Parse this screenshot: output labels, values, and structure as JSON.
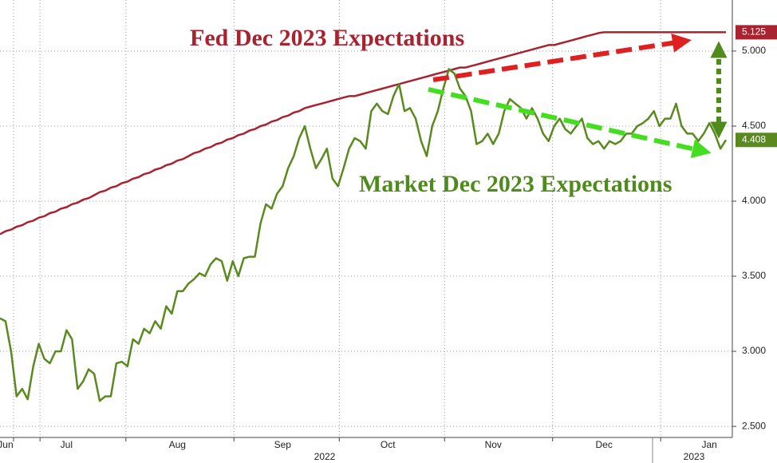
{
  "chart_data": {
    "type": "line",
    "annotations": [
      "Fed Dec 2023 Expectations",
      "Market Dec 2023 Expectations"
    ],
    "categories": [
      null,
      "Jun",
      null,
      null,
      null,
      null,
      null,
      null,
      null,
      null,
      null,
      null,
      "Jul",
      null,
      null,
      null,
      null,
      null,
      null,
      null,
      null,
      null,
      null,
      null,
      null,
      null,
      null,
      null,
      null,
      null,
      null,
      null,
      "Aug",
      null,
      null,
      null,
      null,
      null,
      null,
      null,
      null,
      null,
      null,
      null,
      null,
      null,
      null,
      null,
      null,
      null,
      null,
      "Sep",
      null,
      null,
      null,
      null,
      null,
      null,
      null,
      null,
      null,
      null,
      null,
      null,
      null,
      null,
      null,
      null,
      null,
      null,
      "Oct",
      null,
      null,
      null,
      null,
      null,
      null,
      null,
      null,
      null,
      null,
      null,
      null,
      null,
      null,
      null,
      null,
      null,
      null,
      "Nov",
      null,
      null,
      null,
      null,
      null,
      null,
      null,
      null,
      null,
      null,
      null,
      null,
      null,
      null,
      null,
      null,
      null,
      null,
      null,
      "Dec",
      null,
      null,
      null,
      null,
      null,
      null,
      null,
      null,
      null,
      null,
      null,
      null,
      null,
      null,
      null,
      null,
      null,
      null,
      "Jan",
      null,
      null,
      null
    ],
    "year_labels": [
      "2022",
      "2023"
    ],
    "series": [
      {
        "name": "Fed",
        "color": "#a8232f",
        "end_label": "5.125",
        "values": [
          3.78,
          3.8,
          3.81,
          3.83,
          3.84,
          3.86,
          3.87,
          3.89,
          3.9,
          3.92,
          3.93,
          3.95,
          3.96,
          3.98,
          3.99,
          4.01,
          4.02,
          4.04,
          4.06,
          4.07,
          4.09,
          4.1,
          4.12,
          4.13,
          4.15,
          4.16,
          4.18,
          4.19,
          4.21,
          4.22,
          4.24,
          4.25,
          4.27,
          4.28,
          4.3,
          4.32,
          4.33,
          4.35,
          4.36,
          4.38,
          4.39,
          4.41,
          4.42,
          4.44,
          4.45,
          4.47,
          4.48,
          4.5,
          4.51,
          4.53,
          4.54,
          4.56,
          4.57,
          4.59,
          4.6,
          4.62,
          4.63,
          4.64,
          4.65,
          4.66,
          4.67,
          4.68,
          4.69,
          4.7,
          4.7,
          4.71,
          4.72,
          4.73,
          4.74,
          4.75,
          4.76,
          4.77,
          4.78,
          4.79,
          4.8,
          4.81,
          4.82,
          4.83,
          4.84,
          4.85,
          4.86,
          4.87,
          4.88,
          4.89,
          4.89,
          4.9,
          4.91,
          4.92,
          4.93,
          4.94,
          4.95,
          4.96,
          4.97,
          4.98,
          4.99,
          5.0,
          5.01,
          5.02,
          5.03,
          5.04,
          5.04,
          5.05,
          5.06,
          5.07,
          5.08,
          5.09,
          5.1,
          5.11,
          5.12,
          5.125,
          5.125,
          5.125,
          5.125,
          5.125,
          5.125,
          5.125,
          5.125,
          5.125,
          5.125,
          5.125,
          5.125,
          5.125,
          5.125,
          5.125,
          5.125,
          5.125,
          5.125,
          5.125,
          5.125,
          5.125,
          5.125,
          5.125
        ]
      },
      {
        "name": "Market",
        "color": "#5a8a1f",
        "end_label": "4.408",
        "values": [
          3.22,
          3.2,
          3.0,
          2.7,
          2.75,
          2.68,
          2.9,
          3.05,
          2.95,
          2.92,
          3.0,
          3.0,
          3.14,
          3.08,
          2.75,
          2.8,
          2.88,
          2.85,
          2.67,
          2.7,
          2.7,
          2.92,
          2.93,
          2.9,
          3.08,
          3.05,
          3.15,
          3.12,
          3.2,
          3.15,
          3.3,
          3.25,
          3.4,
          3.4,
          3.45,
          3.48,
          3.52,
          3.5,
          3.58,
          3.62,
          3.6,
          3.47,
          3.6,
          3.5,
          3.62,
          3.63,
          3.63,
          3.85,
          3.98,
          3.95,
          4.05,
          4.1,
          4.22,
          4.3,
          4.42,
          4.5,
          4.35,
          4.22,
          4.28,
          4.35,
          4.15,
          4.1,
          4.22,
          4.35,
          4.42,
          4.4,
          4.35,
          4.6,
          4.65,
          4.6,
          4.58,
          4.7,
          4.78,
          4.6,
          4.62,
          4.55,
          4.4,
          4.3,
          4.5,
          4.6,
          4.75,
          4.88,
          4.85,
          4.75,
          4.7,
          4.6,
          4.38,
          4.4,
          4.45,
          4.38,
          4.45,
          4.6,
          4.68,
          4.65,
          4.62,
          4.55,
          4.62,
          4.55,
          4.45,
          4.4,
          4.5,
          4.55,
          4.48,
          4.45,
          4.5,
          4.55,
          4.42,
          4.38,
          4.4,
          4.35,
          4.4,
          4.38,
          4.4,
          4.45,
          4.45,
          4.5,
          4.52,
          4.55,
          4.6,
          4.5,
          4.55,
          4.55,
          4.65,
          4.5,
          4.45,
          4.45,
          4.4,
          4.45,
          4.52,
          4.45,
          4.35,
          4.408
        ]
      }
    ],
    "ylim": [
      2.426,
      5.34
    ],
    "yticks": [
      {
        "value": 2.5,
        "label": "2.500"
      },
      {
        "value": 3.0,
        "label": "3.000"
      },
      {
        "value": 3.5,
        "label": "3.500"
      },
      {
        "value": 4.0,
        "label": "4.000"
      },
      {
        "value": 4.5,
        "label": "4.500"
      },
      {
        "value": 5.0,
        "label": "5.000"
      }
    ],
    "grid": true
  }
}
